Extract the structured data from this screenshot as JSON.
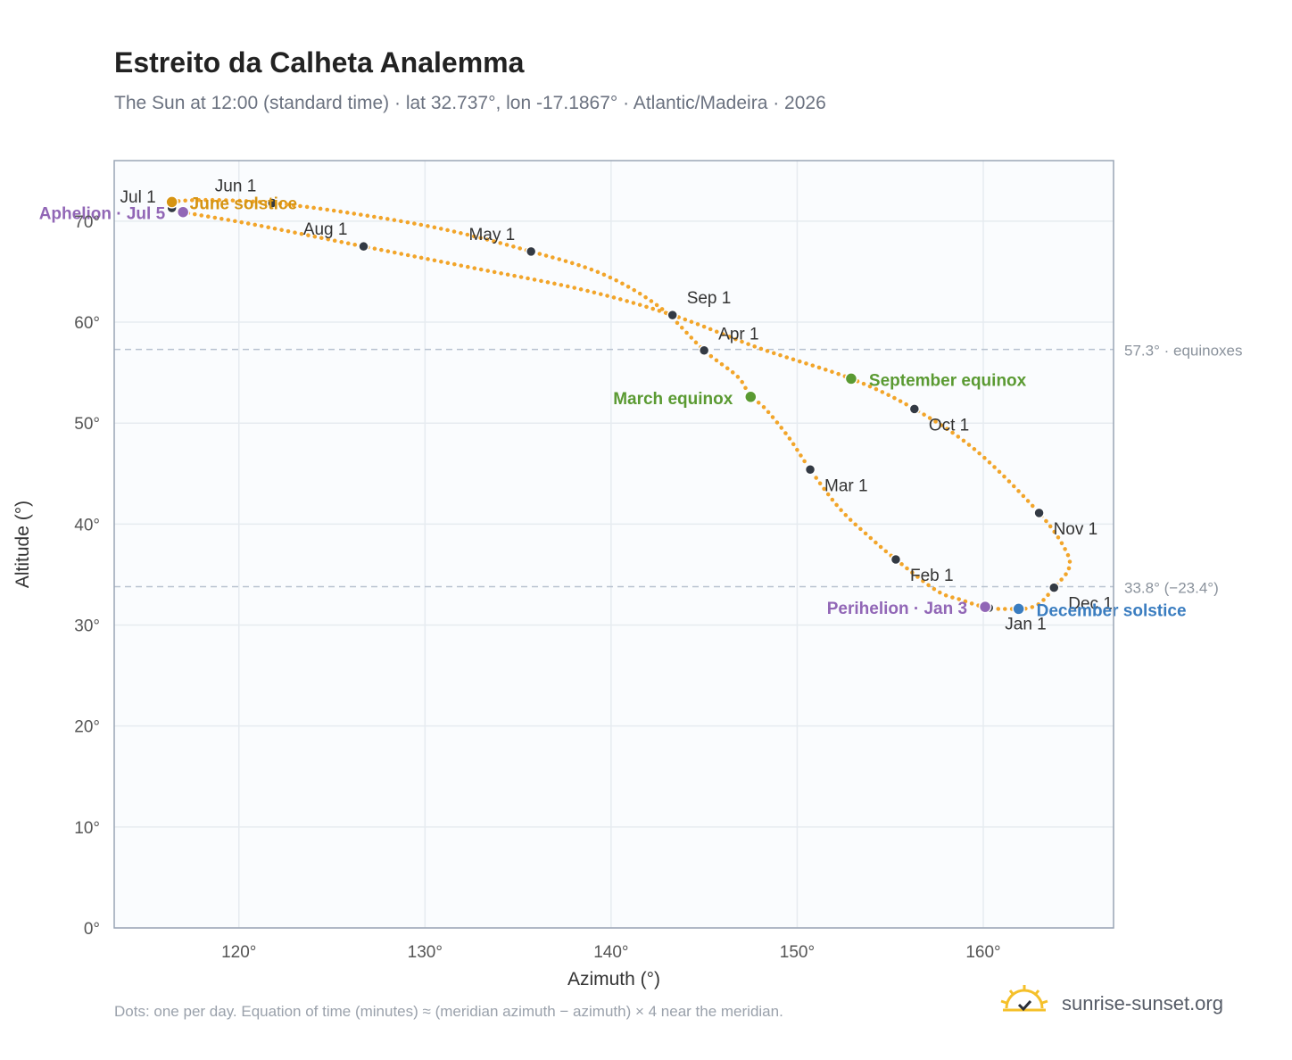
{
  "header": {
    "title": "Estreito da Calheta Analemma",
    "subtitle": "The Sun at 12:00 (standard time) · lat 32.737°, lon -17.1867° · Atlantic/Madeira · 2026"
  },
  "footer": {
    "note": "Dots: one per day. Equation of time (minutes) ≈ (meridian azimuth − azimuth) × 4 near the meridian.",
    "brand": "sunrise-sunset.org"
  },
  "colors": {
    "curve": "#f2a52a",
    "month_dot": "#333a44",
    "equinox": "#5a9a32",
    "perihelion": "#9166b6",
    "june_solstice": "#d69412",
    "december_solstice": "#3a7dc0",
    "grid": "#e6ebf0",
    "plot_bg": "#fafcfe",
    "ref_line": "#b8c2d0"
  },
  "chart_data": {
    "type": "scatter",
    "xlabel": "Azimuth (°)",
    "ylabel": "Altitude (°)",
    "xlim": [
      113.3,
      167
    ],
    "ylim": [
      0,
      76
    ],
    "xticks": [
      120,
      130,
      140,
      150,
      160
    ],
    "xtick_labels": [
      "120°",
      "130°",
      "140°",
      "150°",
      "160°"
    ],
    "yticks": [
      0,
      10,
      20,
      30,
      40,
      50,
      60,
      70
    ],
    "ytick_labels": [
      "0°",
      "10°",
      "20°",
      "30°",
      "40°",
      "50°",
      "60°",
      "70°"
    ],
    "grid": true,
    "reference_lines": [
      {
        "y": 57.3,
        "label": "57.3° · equinoxes"
      },
      {
        "y": 33.8,
        "label": "33.8° (−23.4°)"
      }
    ],
    "month_markers": [
      {
        "label": "Jan 1",
        "az": 160.3,
        "alt": 31.7
      },
      {
        "label": "Feb 1",
        "az": 155.3,
        "alt": 36.5
      },
      {
        "label": "Mar 1",
        "az": 150.7,
        "alt": 45.4
      },
      {
        "label": "Apr 1",
        "az": 145.0,
        "alt": 57.2
      },
      {
        "label": "May 1",
        "az": 135.7,
        "alt": 67.0
      },
      {
        "label": "Jun 1",
        "az": 121.8,
        "alt": 71.8
      },
      {
        "label": "Jul 1",
        "az": 116.4,
        "alt": 71.3
      },
      {
        "label": "Aug 1",
        "az": 126.7,
        "alt": 67.5
      },
      {
        "label": "Sep 1",
        "az": 143.3,
        "alt": 60.7
      },
      {
        "label": "Oct 1",
        "az": 156.3,
        "alt": 51.4
      },
      {
        "label": "Nov 1",
        "az": 163.0,
        "alt": 41.1
      },
      {
        "label": "Dec 1",
        "az": 163.8,
        "alt": 33.7
      }
    ],
    "events": [
      {
        "label": "March equinox",
        "az": 147.5,
        "alt": 52.6,
        "color_key": "equinox",
        "label_side": "left"
      },
      {
        "label": "September equinox",
        "az": 152.9,
        "alt": 54.4,
        "color_key": "equinox",
        "label_side": "right"
      },
      {
        "label": "June solstice",
        "az": 116.4,
        "alt": 71.9,
        "color_key": "june_solstice",
        "label_side": "right"
      },
      {
        "label": "December solstice",
        "az": 161.9,
        "alt": 31.6,
        "color_key": "december_solstice",
        "label_side": "right"
      },
      {
        "label": "Perihelion · Jan 3",
        "az": 160.1,
        "alt": 31.8,
        "color_key": "perihelion",
        "label_side": "left"
      },
      {
        "label": "Aphelion · Jul 5",
        "az": 117.0,
        "alt": 70.9,
        "color_key": "perihelion",
        "label_side": "left"
      }
    ],
    "analemma_path": [
      [
        161.9,
        31.6
      ],
      [
        160.8,
        31.6
      ],
      [
        160.3,
        31.7
      ],
      [
        159.8,
        31.9
      ],
      [
        158.8,
        32.5
      ],
      [
        157.5,
        33.4
      ],
      [
        155.3,
        36.5
      ],
      [
        153.9,
        38.7
      ],
      [
        152.3,
        41.5
      ],
      [
        150.7,
        45.4
      ],
      [
        149.5,
        48.7
      ],
      [
        148.2,
        51.6
      ],
      [
        147.5,
        52.6
      ],
      [
        146.8,
        54.6
      ],
      [
        145.0,
        57.2
      ],
      [
        142.6,
        61.5
      ],
      [
        139.5,
        64.8
      ],
      [
        135.7,
        67.0
      ],
      [
        131.0,
        69.2
      ],
      [
        126.0,
        70.8
      ],
      [
        121.8,
        71.8
      ],
      [
        118.5,
        72.1
      ],
      [
        116.4,
        71.9
      ],
      [
        116.4,
        71.3
      ],
      [
        117.0,
        70.9
      ],
      [
        121.0,
        69.6
      ],
      [
        126.7,
        67.5
      ],
      [
        132.5,
        65.4
      ],
      [
        138.5,
        63.2
      ],
      [
        143.3,
        60.7
      ],
      [
        148.0,
        57.4
      ],
      [
        152.9,
        54.4
      ],
      [
        156.3,
        51.4
      ],
      [
        159.6,
        47.3
      ],
      [
        163.0,
        41.1
      ],
      [
        164.4,
        37.5
      ],
      [
        164.6,
        35.6
      ],
      [
        163.8,
        33.7
      ],
      [
        163.0,
        32.1
      ],
      [
        162.2,
        31.6
      ],
      [
        161.9,
        31.6
      ]
    ]
  }
}
